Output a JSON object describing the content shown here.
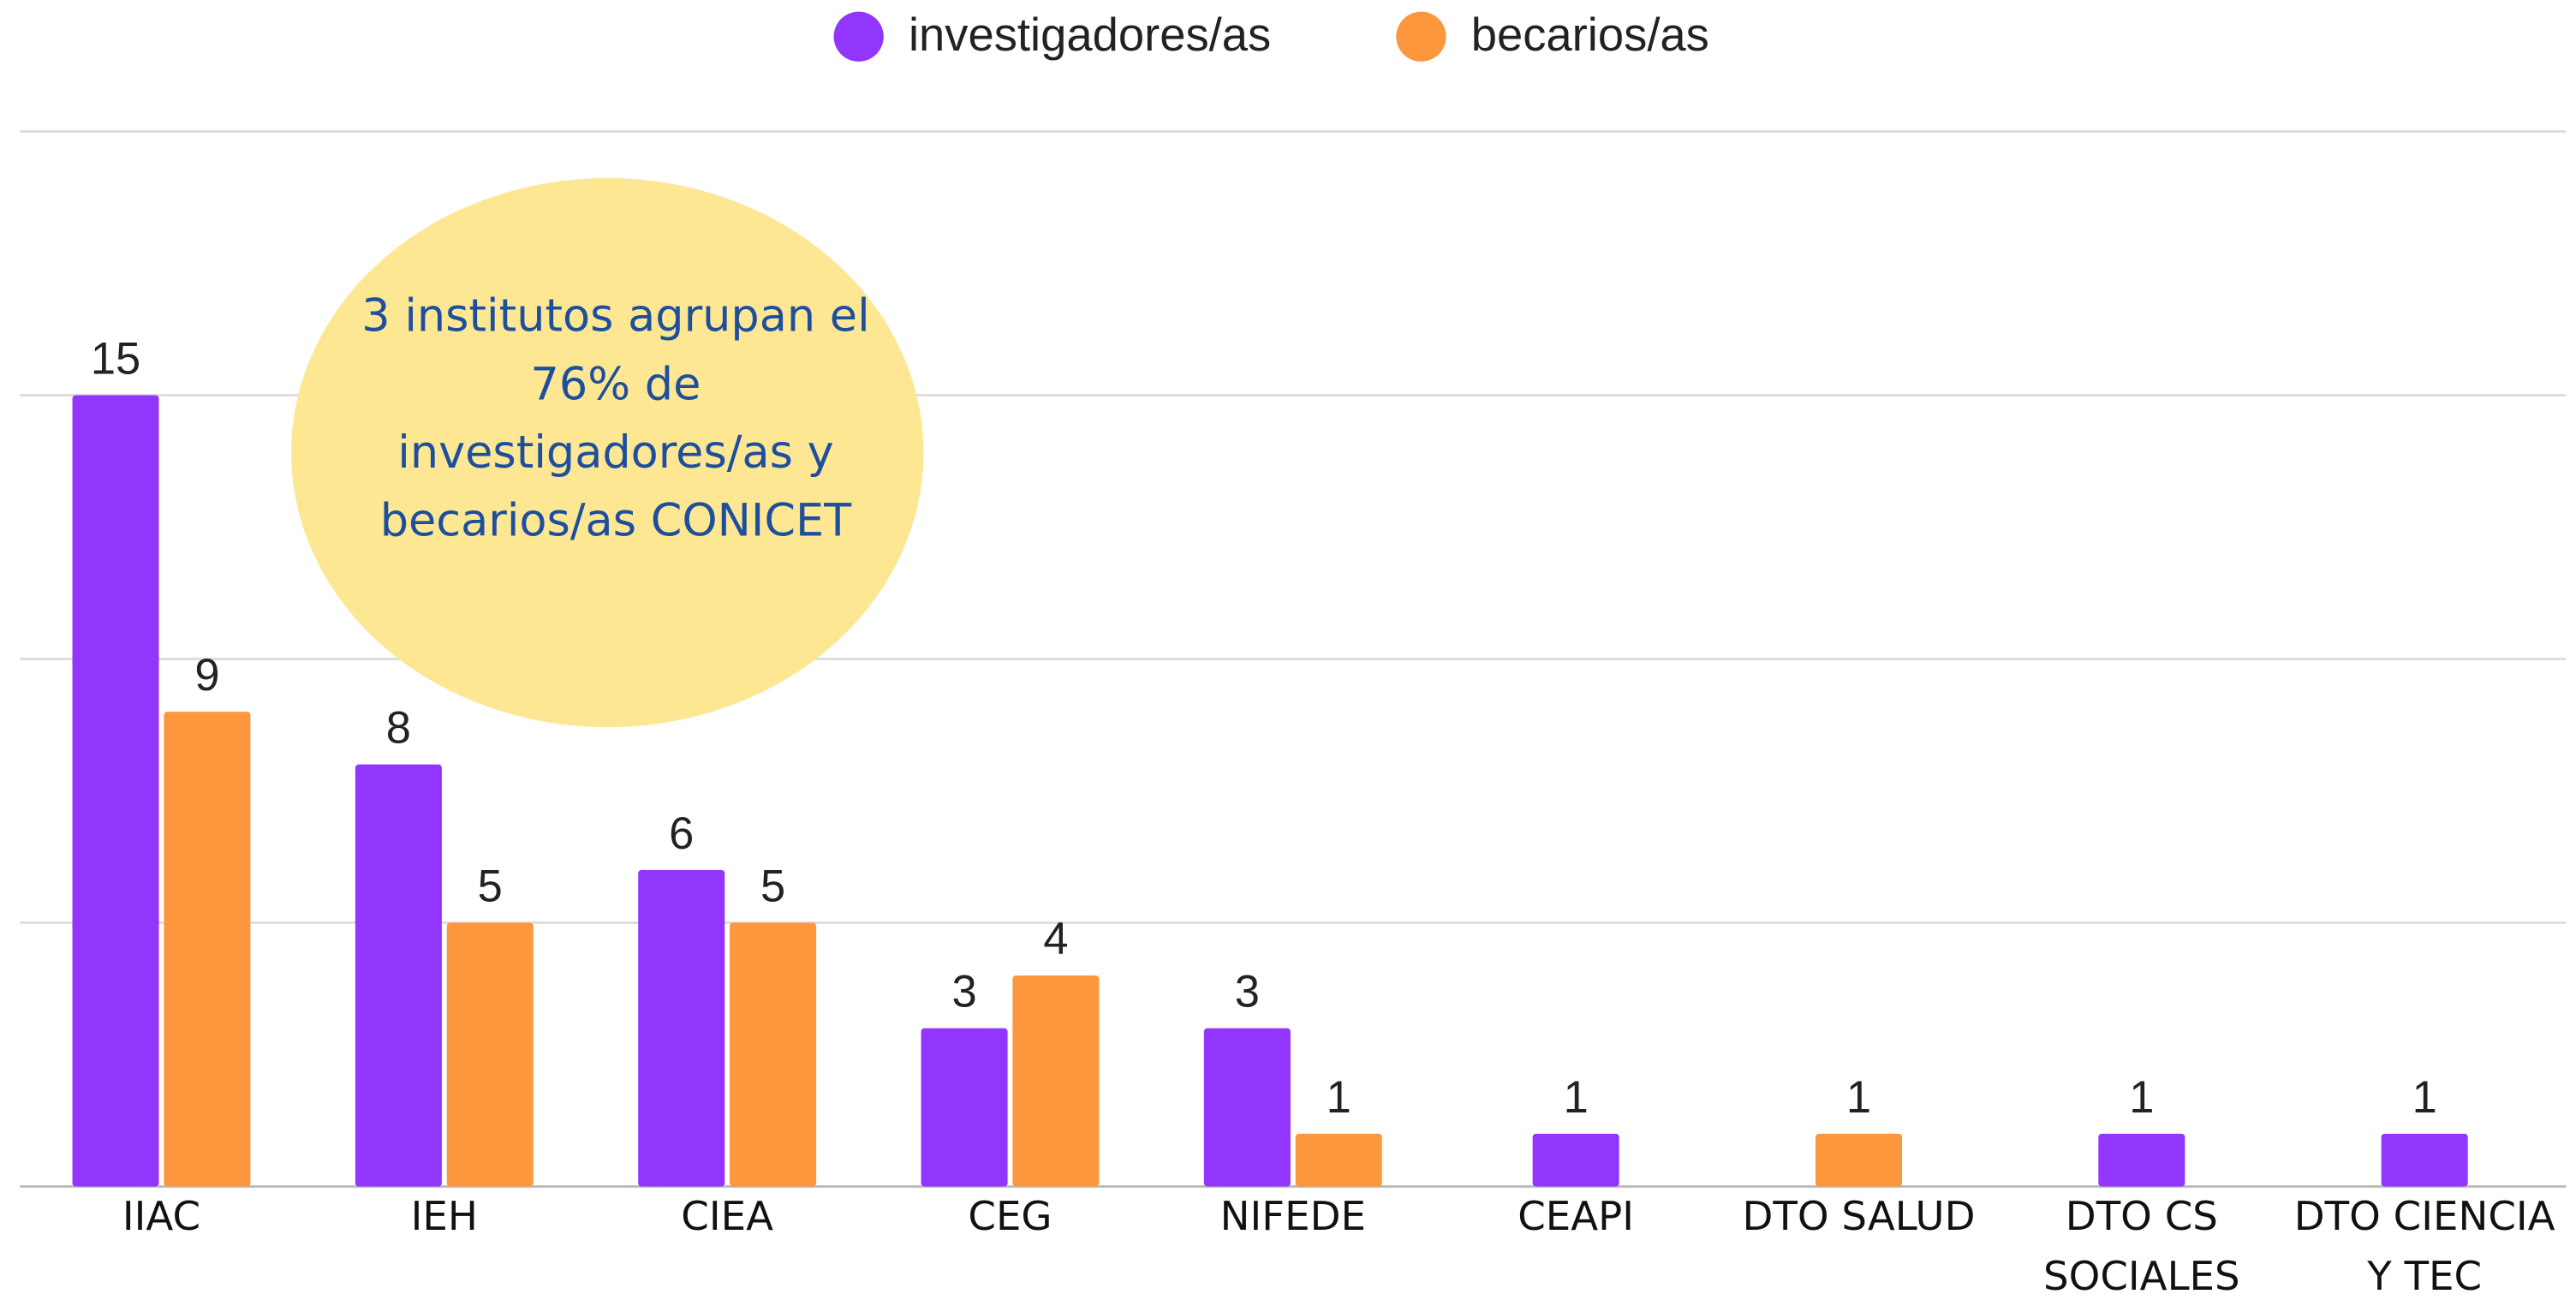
{
  "chart_data": {
    "type": "bar",
    "categories": [
      "IIAC",
      "IEH",
      "CIEA",
      "CEG",
      "NIFEDE",
      "CEAPI",
      "DTO SALUD",
      "DTO CS SOCIALES",
      "DTO CIENCIA Y TEC"
    ],
    "series": [
      {
        "name": "investigadores/as",
        "color": "#9336fd",
        "values": [
          15,
          8,
          6,
          3,
          3,
          1,
          null,
          1,
          1
        ]
      },
      {
        "name": "becarios/as",
        "color": "#fd973d",
        "values": [
          9,
          5,
          5,
          4,
          1,
          null,
          1,
          null,
          null
        ]
      }
    ],
    "ylim": [
      0,
      20
    ],
    "yticks": [
      0,
      5,
      10,
      15,
      20
    ],
    "grid": true,
    "legend": "top",
    "annotation": "3 institutos agrupan el 76% de investigadores/as y becarios/as CONICET"
  }
}
